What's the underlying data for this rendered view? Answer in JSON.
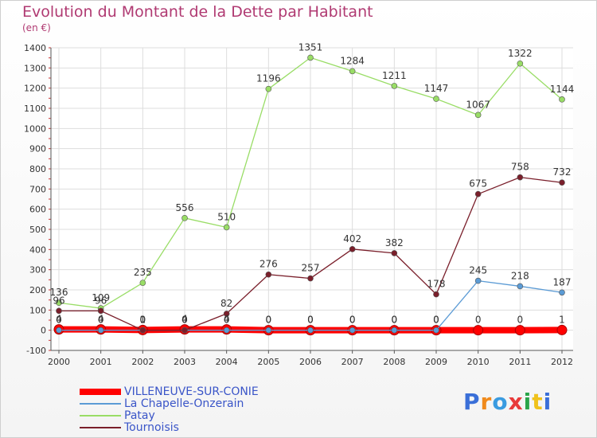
{
  "chart_data": {
    "type": "line",
    "title": "Evolution du Montant de la Dette par Habitant",
    "unit_label": "(en €)",
    "x": [
      "2000",
      "2001",
      "2002",
      "2003",
      "2004",
      "2005",
      "2006",
      "2007",
      "2008",
      "2009",
      "2010",
      "2011",
      "2012"
    ],
    "ylim": [
      -100,
      1400
    ],
    "yticks": [
      -100,
      0,
      100,
      200,
      300,
      400,
      500,
      600,
      700,
      800,
      900,
      1000,
      1100,
      1200,
      1300,
      1400
    ],
    "grid": true,
    "legend_position": "bottom-left",
    "series": [
      {
        "name": "VILLENEUVE-SUR-CONIE",
        "color": "#ff0000",
        "values": [
          4,
          4,
          1,
          4,
          4,
          0,
          0,
          0,
          0,
          0,
          0,
          0,
          1
        ]
      },
      {
        "name": "La Chapelle-Onzerain",
        "color": "#5b9bd5",
        "values": [
          0,
          0,
          0,
          0,
          0,
          0,
          0,
          0,
          0,
          0,
          245,
          218,
          187
        ]
      },
      {
        "name": "Patay",
        "color": "#99dd66",
        "values": [
          136,
          109,
          235,
          556,
          510,
          1196,
          1351,
          1284,
          1211,
          1147,
          1067,
          1322,
          1144
        ]
      },
      {
        "name": "Tournoisis",
        "color": "#7a1f2b",
        "values": [
          96,
          96,
          0,
          0,
          82,
          276,
          257,
          402,
          382,
          178,
          675,
          758,
          732
        ]
      }
    ]
  },
  "branding": {
    "logo_text": "Proxiti"
  }
}
